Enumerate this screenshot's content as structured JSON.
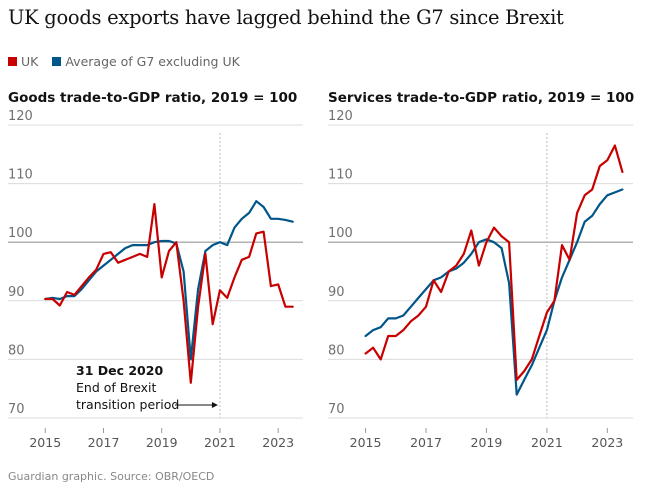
{
  "title": "UK goods exports have lagged behind the G7 since Brexit",
  "legend": [
    {
      "label": "UK",
      "color": "#c70000"
    },
    {
      "label": "Average of G7 excluding UK",
      "color": "#005689"
    }
  ],
  "source": "Guardian graphic. Source: OBR/OECD",
  "annotation": {
    "date": "31 Dec 2020",
    "line1": "End of Brexit",
    "line2": "transition period"
  },
  "chart_data": [
    {
      "type": "line",
      "title": "Goods trade-to-GDP ratio, 2019 = 100",
      "xlim": [
        2014.75,
        2023.75
      ],
      "ylim": [
        70,
        120
      ],
      "yticks": [
        70,
        80,
        90,
        100,
        110,
        120
      ],
      "xticks": [
        2015,
        2017,
        2019,
        2021,
        2023
      ],
      "reference_line": 100,
      "event_x": 2021.0,
      "series": [
        {
          "name": "UK",
          "color": "#c70000",
          "points": [
            [
              2015.0,
              90.3
            ],
            [
              2015.25,
              90.3
            ],
            [
              2015.5,
              89.2
            ],
            [
              2015.75,
              91.5
            ],
            [
              2016.0,
              91.0
            ],
            [
              2016.25,
              92.5
            ],
            [
              2016.5,
              94.0
            ],
            [
              2016.75,
              95.3
            ],
            [
              2017.0,
              98.0
            ],
            [
              2017.25,
              98.3
            ],
            [
              2017.5,
              96.5
            ],
            [
              2017.75,
              97.0
            ],
            [
              2018.0,
              97.5
            ],
            [
              2018.25,
              98.0
            ],
            [
              2018.5,
              97.5
            ],
            [
              2018.75,
              106.5
            ],
            [
              2019.0,
              94.0
            ],
            [
              2019.25,
              98.5
            ],
            [
              2019.5,
              100.0
            ],
            [
              2019.75,
              90.0
            ],
            [
              2020.0,
              76.0
            ],
            [
              2020.25,
              89.0
            ],
            [
              2020.5,
              98.0
            ],
            [
              2020.75,
              86.0
            ],
            [
              2021.0,
              91.8
            ],
            [
              2021.25,
              90.5
            ],
            [
              2021.5,
              94.0
            ],
            [
              2021.75,
              97.0
            ],
            [
              2022.0,
              97.5
            ],
            [
              2022.25,
              101.5
            ],
            [
              2022.5,
              101.8
            ],
            [
              2022.75,
              92.5
            ],
            [
              2023.0,
              92.8
            ],
            [
              2023.25,
              89.0
            ],
            [
              2023.5,
              89.0
            ]
          ]
        },
        {
          "name": "Average of G7 excluding UK",
          "color": "#005689",
          "points": [
            [
              2015.0,
              90.3
            ],
            [
              2015.25,
              90.5
            ],
            [
              2015.5,
              90.3
            ],
            [
              2015.75,
              90.8
            ],
            [
              2016.0,
              90.8
            ],
            [
              2016.25,
              92.0
            ],
            [
              2016.5,
              93.5
            ],
            [
              2016.75,
              95.0
            ],
            [
              2017.0,
              96.0
            ],
            [
              2017.25,
              97.0
            ],
            [
              2017.5,
              98.0
            ],
            [
              2017.75,
              99.0
            ],
            [
              2018.0,
              99.5
            ],
            [
              2018.25,
              99.5
            ],
            [
              2018.5,
              99.5
            ],
            [
              2018.75,
              100.0
            ],
            [
              2019.0,
              100.2
            ],
            [
              2019.25,
              100.2
            ],
            [
              2019.5,
              99.8
            ],
            [
              2019.75,
              95.0
            ],
            [
              2020.0,
              80.0
            ],
            [
              2020.25,
              92.0
            ],
            [
              2020.5,
              98.5
            ],
            [
              2020.75,
              99.5
            ],
            [
              2021.0,
              100.0
            ],
            [
              2021.25,
              99.5
            ],
            [
              2021.5,
              102.5
            ],
            [
              2021.75,
              104.0
            ],
            [
              2022.0,
              105.0
            ],
            [
              2022.25,
              107.0
            ],
            [
              2022.5,
              106.0
            ],
            [
              2022.75,
              104.0
            ],
            [
              2023.0,
              104.0
            ],
            [
              2023.25,
              103.8
            ],
            [
              2023.5,
              103.5
            ]
          ]
        }
      ]
    },
    {
      "type": "line",
      "title": "Services trade-to-GDP ratio, 2019 = 100",
      "xlim": [
        2014.75,
        2023.75
      ],
      "ylim": [
        70,
        120
      ],
      "yticks": [
        70,
        80,
        90,
        100,
        110,
        120
      ],
      "xticks": [
        2015,
        2017,
        2019,
        2021,
        2023
      ],
      "reference_line": 100,
      "event_x": 2021.0,
      "series": [
        {
          "name": "UK",
          "color": "#c70000",
          "points": [
            [
              2015.0,
              81.0
            ],
            [
              2015.25,
              82.0
            ],
            [
              2015.5,
              80.0
            ],
            [
              2015.75,
              84.0
            ],
            [
              2016.0,
              84.0
            ],
            [
              2016.25,
              85.0
            ],
            [
              2016.5,
              86.5
            ],
            [
              2016.75,
              87.5
            ],
            [
              2017.0,
              89.0
            ],
            [
              2017.25,
              93.5
            ],
            [
              2017.5,
              91.5
            ],
            [
              2017.75,
              95.0
            ],
            [
              2018.0,
              96.0
            ],
            [
              2018.25,
              98.0
            ],
            [
              2018.5,
              102.0
            ],
            [
              2018.75,
              96.0
            ],
            [
              2019.0,
              100.0
            ],
            [
              2019.25,
              102.5
            ],
            [
              2019.5,
              101.0
            ],
            [
              2019.75,
              100.0
            ],
            [
              2020.0,
              76.5
            ],
            [
              2020.25,
              78.0
            ],
            [
              2020.5,
              80.0
            ],
            [
              2020.75,
              84.0
            ],
            [
              2021.0,
              88.0
            ],
            [
              2021.25,
              90.0
            ],
            [
              2021.5,
              99.5
            ],
            [
              2021.75,
              97.0
            ],
            [
              2022.0,
              105.0
            ],
            [
              2022.25,
              108.0
            ],
            [
              2022.5,
              109.0
            ],
            [
              2022.75,
              113.0
            ],
            [
              2023.0,
              114.0
            ],
            [
              2023.25,
              116.5
            ],
            [
              2023.5,
              112.0
            ]
          ]
        },
        {
          "name": "Average of G7 excluding UK",
          "color": "#005689",
          "points": [
            [
              2015.0,
              84.0
            ],
            [
              2015.25,
              85.0
            ],
            [
              2015.5,
              85.5
            ],
            [
              2015.75,
              87.0
            ],
            [
              2016.0,
              87.0
            ],
            [
              2016.25,
              87.5
            ],
            [
              2016.5,
              89.0
            ],
            [
              2016.75,
              90.5
            ],
            [
              2017.0,
              92.0
            ],
            [
              2017.25,
              93.5
            ],
            [
              2017.5,
              94.0
            ],
            [
              2017.75,
              95.0
            ],
            [
              2018.0,
              95.5
            ],
            [
              2018.25,
              96.5
            ],
            [
              2018.5,
              98.0
            ],
            [
              2018.75,
              100.0
            ],
            [
              2019.0,
              100.5
            ],
            [
              2019.25,
              100.0
            ],
            [
              2019.5,
              99.0
            ],
            [
              2019.75,
              93.0
            ],
            [
              2020.0,
              74.0
            ],
            [
              2020.25,
              76.5
            ],
            [
              2020.5,
              79.0
            ],
            [
              2020.75,
              82.0
            ],
            [
              2021.0,
              85.0
            ],
            [
              2021.25,
              90.0
            ],
            [
              2021.5,
              94.0
            ],
            [
              2021.75,
              97.0
            ],
            [
              2022.0,
              100.0
            ],
            [
              2022.25,
              103.5
            ],
            [
              2022.5,
              104.5
            ],
            [
              2022.75,
              106.5
            ],
            [
              2023.0,
              108.0
            ],
            [
              2023.25,
              108.5
            ],
            [
              2023.5,
              109.0
            ]
          ]
        }
      ]
    }
  ]
}
